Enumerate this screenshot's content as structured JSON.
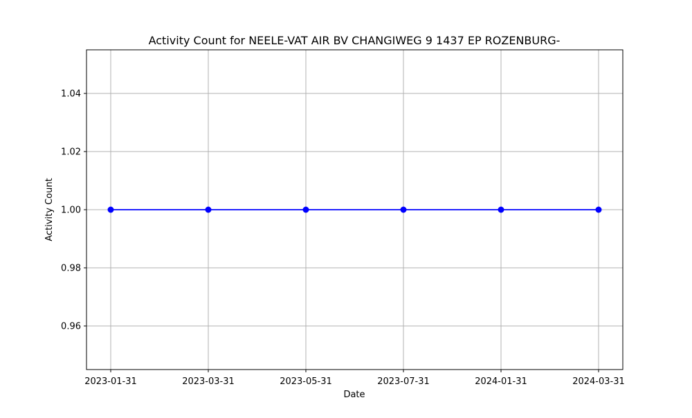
{
  "chart_data": {
    "type": "line",
    "title": "Activity Count for NEELE-VAT AIR BV CHANGIWEG 9 1437 EP ROZENBURG-",
    "xlabel": "Date",
    "ylabel": "Activity Count",
    "categories": [
      "2023-01-31",
      "2023-03-31",
      "2023-05-31",
      "2023-07-31",
      "2024-01-31",
      "2024-03-31"
    ],
    "series": [
      {
        "values": [
          1,
          1,
          1,
          1,
          1,
          1
        ],
        "color": "#0000ff",
        "marker": "circle"
      }
    ],
    "ylim": [
      0.945,
      1.055
    ],
    "yticks": [
      0.96,
      0.98,
      1.0,
      1.02,
      1.04
    ],
    "ytick_labels": [
      "0.96",
      "0.98",
      "1.00",
      "1.02",
      "1.04"
    ],
    "grid": true
  }
}
